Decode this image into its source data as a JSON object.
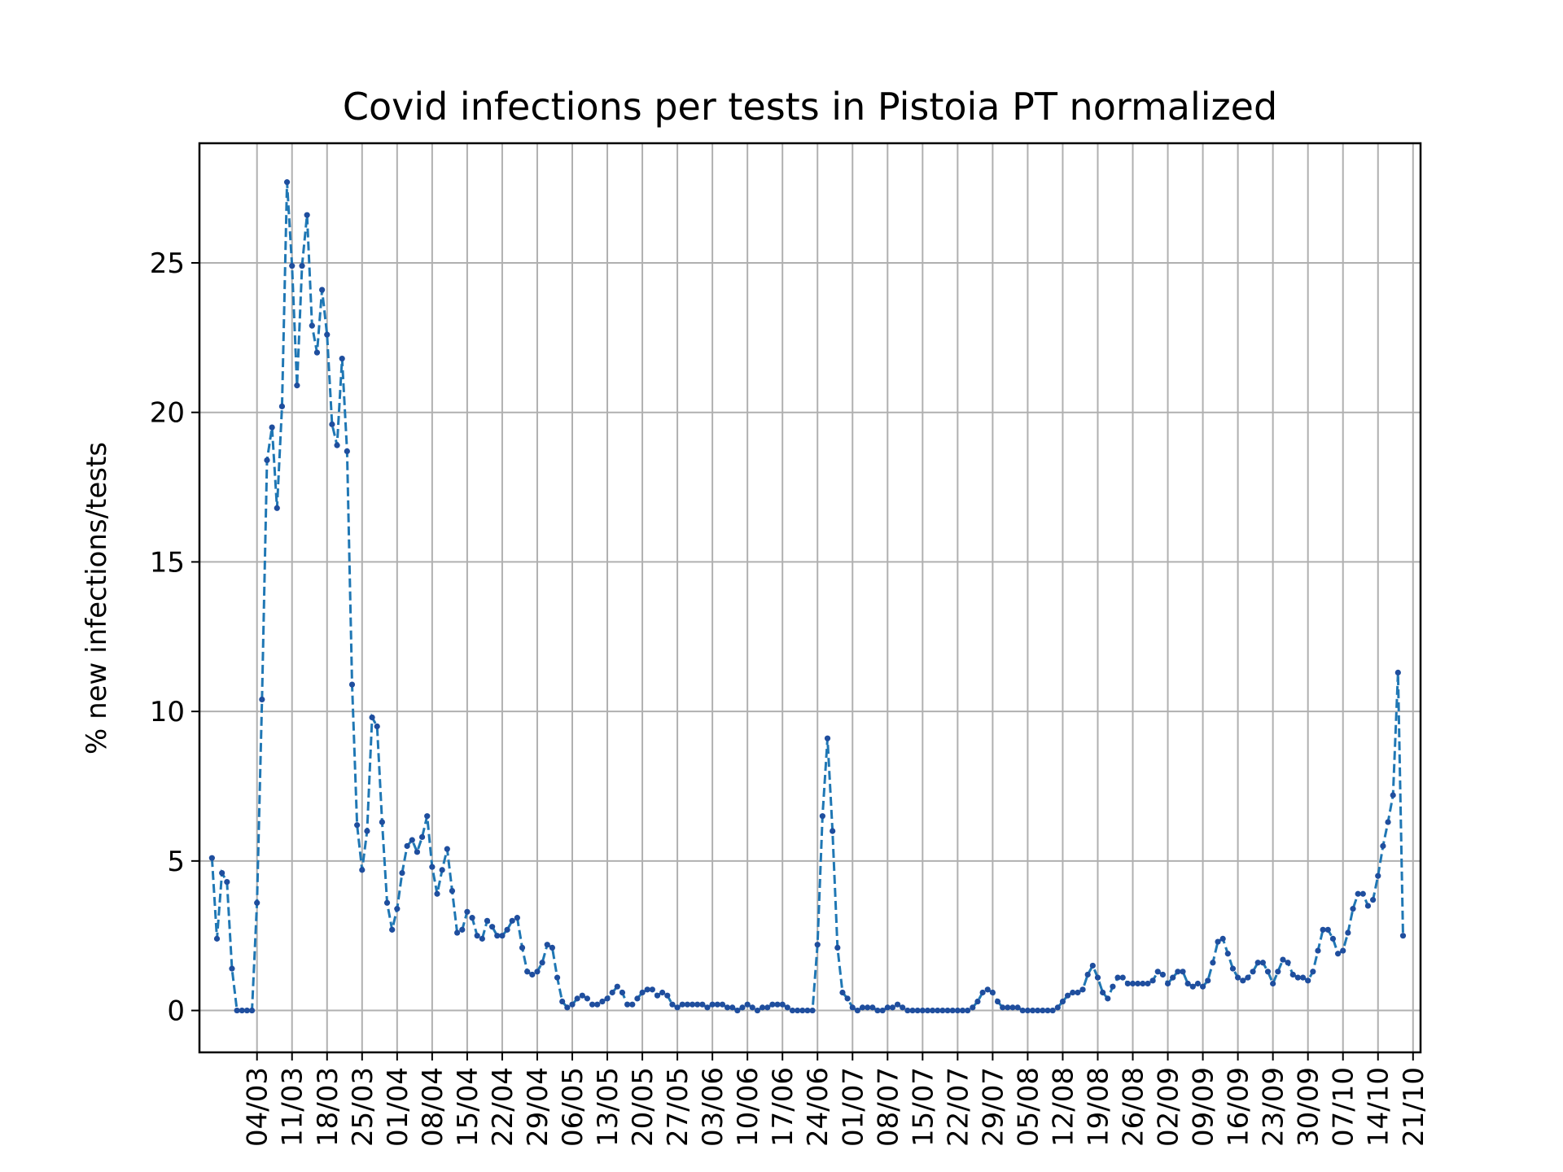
{
  "chart_data": {
    "type": "line",
    "title": "Covid infections per tests in Pistoia PT normalized",
    "xlabel": "",
    "ylabel": "% new infections/tests",
    "ylim": [
      -1.4,
      29.0
    ],
    "yticks": [
      0,
      5,
      10,
      15,
      20,
      25
    ],
    "grid": true,
    "legend": "none",
    "series_color": "#1f77b4",
    "marker_color": "#1f4e9e",
    "x_start_date": "2020-02-24",
    "xticks": [
      {
        "label": "04/03",
        "date": "2020-03-04"
      },
      {
        "label": "11/03",
        "date": "2020-03-11"
      },
      {
        "label": "18/03",
        "date": "2020-03-18"
      },
      {
        "label": "25/03",
        "date": "2020-03-25"
      },
      {
        "label": "01/04",
        "date": "2020-04-01"
      },
      {
        "label": "08/04",
        "date": "2020-04-08"
      },
      {
        "label": "15/04",
        "date": "2020-04-15"
      },
      {
        "label": "22/04",
        "date": "2020-04-22"
      },
      {
        "label": "29/04",
        "date": "2020-04-29"
      },
      {
        "label": "06/05",
        "date": "2020-05-06"
      },
      {
        "label": "13/05",
        "date": "2020-05-13"
      },
      {
        "label": "20/05",
        "date": "2020-05-20"
      },
      {
        "label": "27/05",
        "date": "2020-05-27"
      },
      {
        "label": "03/06",
        "date": "2020-06-03"
      },
      {
        "label": "10/06",
        "date": "2020-06-10"
      },
      {
        "label": "17/06",
        "date": "2020-06-17"
      },
      {
        "label": "24/06",
        "date": "2020-06-24"
      },
      {
        "label": "01/07",
        "date": "2020-07-01"
      },
      {
        "label": "08/07",
        "date": "2020-07-08"
      },
      {
        "label": "15/07",
        "date": "2020-07-15"
      },
      {
        "label": "22/07",
        "date": "2020-07-22"
      },
      {
        "label": "29/07",
        "date": "2020-07-29"
      },
      {
        "label": "05/08",
        "date": "2020-08-05"
      },
      {
        "label": "12/08",
        "date": "2020-08-12"
      },
      {
        "label": "19/08",
        "date": "2020-08-19"
      },
      {
        "label": "26/08",
        "date": "2020-08-26"
      },
      {
        "label": "02/09",
        "date": "2020-09-02"
      },
      {
        "label": "09/09",
        "date": "2020-09-09"
      },
      {
        "label": "16/09",
        "date": "2020-09-16"
      },
      {
        "label": "23/09",
        "date": "2020-09-23"
      },
      {
        "label": "30/09",
        "date": "2020-09-30"
      },
      {
        "label": "07/10",
        "date": "2020-10-07"
      },
      {
        "label": "14/10",
        "date": "2020-10-14"
      },
      {
        "label": "21/10",
        "date": "2020-10-21"
      }
    ],
    "series": [
      {
        "values": [
          5.1,
          2.4,
          4.6,
          4.3,
          1.4,
          0,
          0,
          0,
          0,
          3.6,
          10.4,
          18.4,
          19.5,
          16.8,
          20.2,
          27.7,
          24.9,
          20.9,
          24.9,
          26.6,
          22.9,
          22.0,
          24.1,
          22.6,
          19.6,
          18.9,
          21.8,
          18.7,
          10.9,
          6.2,
          4.7,
          6.0,
          9.8,
          9.5,
          6.3,
          3.6,
          2.7,
          3.4,
          4.6,
          5.5,
          5.7,
          5.3,
          5.8,
          6.5,
          4.8,
          3.9,
          4.7,
          5.4,
          4.0,
          2.6,
          2.7,
          3.3,
          3.1,
          2.5,
          2.4,
          3.0,
          2.8,
          2.5,
          2.5,
          2.7,
          3.0,
          3.1,
          2.1,
          1.3,
          1.2,
          1.3,
          1.6,
          2.2,
          2.1,
          1.1,
          0.3,
          0.1,
          0.2,
          0.4,
          0.5,
          0.4,
          0.2,
          0.2,
          0.3,
          0.4,
          0.6,
          0.8,
          0.6,
          0.2,
          0.2,
          0.4,
          0.6,
          0.7,
          0.7,
          0.5,
          0.6,
          0.5,
          0.2,
          0.1,
          0.2,
          0.2,
          0.2,
          0.2,
          0.2,
          0.1,
          0.2,
          0.2,
          0.2,
          0.1,
          0.1,
          0.0,
          0.1,
          0.2,
          0.1,
          0.0,
          0.1,
          0.1,
          0.2,
          0.2,
          0.2,
          0.1,
          0.0,
          0.0,
          0.0,
          0.0,
          0.0,
          2.2,
          6.5,
          9.1,
          6.0,
          2.1,
          0.6,
          0.4,
          0.1,
          0.0,
          0.1,
          0.1,
          0.1,
          0.0,
          0.0,
          0.1,
          0.1,
          0.2,
          0.1,
          0.0,
          0.0,
          0.0,
          0.0,
          0.0,
          0.0,
          0.0,
          0.0,
          0.0,
          0.0,
          0.0,
          0.0,
          0.0,
          0.1,
          0.3,
          0.6,
          0.7,
          0.6,
          0.3,
          0.1,
          0.1,
          0.1,
          0.1,
          0.0,
          0.0,
          0.0,
          0.0,
          0.0,
          0.0,
          0.0,
          0.1,
          0.3,
          0.5,
          0.6,
          0.6,
          0.7,
          1.2,
          1.5,
          1.1,
          0.6,
          0.4,
          0.8,
          1.1,
          1.1,
          0.9,
          0.9,
          0.9,
          0.9,
          0.9,
          1.0,
          1.3,
          1.2,
          0.9,
          1.1,
          1.3,
          1.3,
          0.9,
          0.8,
          0.9,
          0.8,
          1.0,
          1.6,
          2.3,
          2.4,
          1.9,
          1.4,
          1.1,
          1.0,
          1.1,
          1.3,
          1.6,
          1.6,
          1.3,
          0.9,
          1.3,
          1.7,
          1.6,
          1.2,
          1.1,
          1.1,
          1.0,
          1.3,
          2.0,
          2.7,
          2.7,
          2.4,
          1.9,
          2.0,
          2.6,
          3.4,
          3.9,
          3.9,
          3.5,
          3.7,
          4.5,
          5.5,
          6.3,
          7.2,
          11.3,
          2.5
        ]
      }
    ]
  }
}
